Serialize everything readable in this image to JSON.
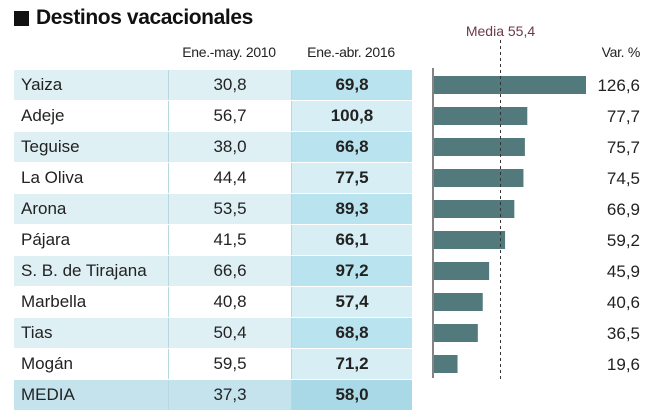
{
  "title": "Destinos vacacionales",
  "headers": {
    "col1": "Ene.-may. 2010",
    "col2": "Ene.-abr. 2016",
    "var": "Var. %"
  },
  "media_line_label": "Media 55,4",
  "rows": [
    {
      "name": "Yaiza",
      "v2010": "30,8",
      "v2016": "69,8"
    },
    {
      "name": "Adeje",
      "v2010": "56,7",
      "v2016": "100,8"
    },
    {
      "name": "Teguise",
      "v2010": "38,0",
      "v2016": "66,8"
    },
    {
      "name": "La Oliva",
      "v2010": "44,4",
      "v2016": "77,5"
    },
    {
      "name": "Arona",
      "v2010": "53,5",
      "v2016": "89,3"
    },
    {
      "name": "Pájara",
      "v2010": "41,5",
      "v2016": "66,1"
    },
    {
      "name": "S. B. de Tirajana",
      "v2010": "66,6",
      "v2016": "97,2"
    },
    {
      "name": "Marbella",
      "v2010": "40,8",
      "v2016": "57,4"
    },
    {
      "name": "Tias",
      "v2010": "50,4",
      "v2016": "68,8"
    },
    {
      "name": "Mogán",
      "v2010": "59,5",
      "v2016": "71,2"
    },
    {
      "name": "MEDIA",
      "v2010": "37,3",
      "v2016": "58,0"
    }
  ],
  "chart_data": {
    "type": "bar",
    "orientation": "horizontal",
    "categories": [
      "Yaiza",
      "Adeje",
      "Teguise",
      "La Oliva",
      "Arona",
      "Pájara",
      "S. B. de Tirajana",
      "Marbella",
      "Tias",
      "Mogán"
    ],
    "values": [
      126.6,
      77.7,
      75.7,
      74.5,
      66.9,
      59.2,
      45.9,
      40.6,
      36.5,
      19.6
    ],
    "value_labels": [
      "126,6",
      "77,7",
      "75,7",
      "74,5",
      "66,9",
      "59,2",
      "45,9",
      "40,6",
      "36,5",
      "19,6"
    ],
    "xlabel": "Var. %",
    "xlim": [
      0,
      126.6
    ],
    "reference_line": {
      "value": 55.4,
      "label": "Media 55,4"
    },
    "colors": {
      "bar": "#527a7c",
      "media_line": "#6b3a4a",
      "label": "#222222"
    }
  }
}
